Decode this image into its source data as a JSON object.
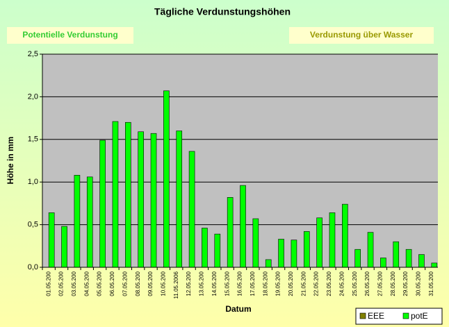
{
  "chart_data": {
    "type": "bar",
    "title": "Tägliche Verdunstungshöhen",
    "annotations": [
      "Potentielle Verdunstung",
      "Verdunstung über Wasser"
    ],
    "x_label": "Datum",
    "y_label": "Höhe in mm",
    "categories": [
      "01.05.200",
      "02.05.200",
      "03.05.200",
      "04.05.200",
      "05.05.200",
      "06.05.200",
      "07.05.200",
      "08.05.200",
      "09.05.200",
      "10.05.200",
      "11.05.2006",
      "12.05.200",
      "13.05.200",
      "14.05.200",
      "15.05.200",
      "16.05.200",
      "17.05.200",
      "18.05.200",
      "19.05.200",
      "20.05.200",
      "21.05.200",
      "22.05.200",
      "23.05.200",
      "24.05.200",
      "25.05.200",
      "26.05.200",
      "27.05.200",
      "28.05.200",
      "29.05.200",
      "30.05.200",
      "31.05.200"
    ],
    "series": [
      {
        "name": "EEE",
        "color": "#808000",
        "values": [
          null,
          null,
          null,
          null,
          null,
          null,
          null,
          null,
          null,
          null,
          null,
          null,
          null,
          null,
          null,
          null,
          null,
          null,
          null,
          null,
          null,
          null,
          null,
          null,
          null,
          null,
          null,
          null,
          null,
          null,
          null
        ]
      },
      {
        "name": "potE",
        "color": "#00ff00",
        "values": [
          0.64,
          0.48,
          1.08,
          1.06,
          1.49,
          1.71,
          1.7,
          1.59,
          1.57,
          2.07,
          1.6,
          1.36,
          0.46,
          0.39,
          0.82,
          0.96,
          0.57,
          0.09,
          0.33,
          0.32,
          0.42,
          0.58,
          0.64,
          0.74,
          0.21,
          0.41,
          0.11,
          0.3,
          0.21,
          0.15,
          0.05
        ]
      }
    ],
    "ylim": [
      0,
      2.5
    ],
    "yticks": [
      {
        "value": 0,
        "label": "0,0"
      },
      {
        "value": 0.5,
        "label": "0,5"
      },
      {
        "value": 1,
        "label": "1,0"
      },
      {
        "value": 1.5,
        "label": "1,5"
      },
      {
        "value": 2,
        "label": "2,0"
      },
      {
        "value": 2.5,
        "label": "2,5"
      }
    ],
    "grid": true,
    "legend": "bottom-right"
  }
}
